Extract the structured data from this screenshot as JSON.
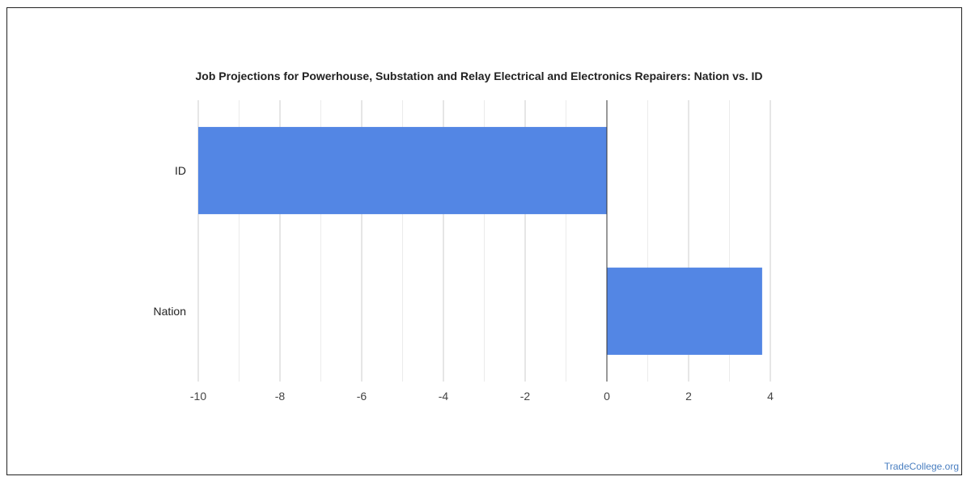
{
  "chart_data": {
    "type": "bar",
    "orientation": "horizontal",
    "title": "Job Projections for Powerhouse, Substation and Relay Electrical and Electronics Repairers: Nation vs. ID",
    "categories": [
      "ID",
      "Nation"
    ],
    "values": [
      -10,
      3.8
    ],
    "xlim": [
      -10,
      4
    ],
    "xticks": [
      -10,
      -8,
      -6,
      -4,
      -2,
      0,
      2,
      4
    ],
    "xlabel": "",
    "ylabel": "",
    "grid": true,
    "legend": "none",
    "bar_color": "#5386e4"
  },
  "watermark": "TradeCollege.org"
}
